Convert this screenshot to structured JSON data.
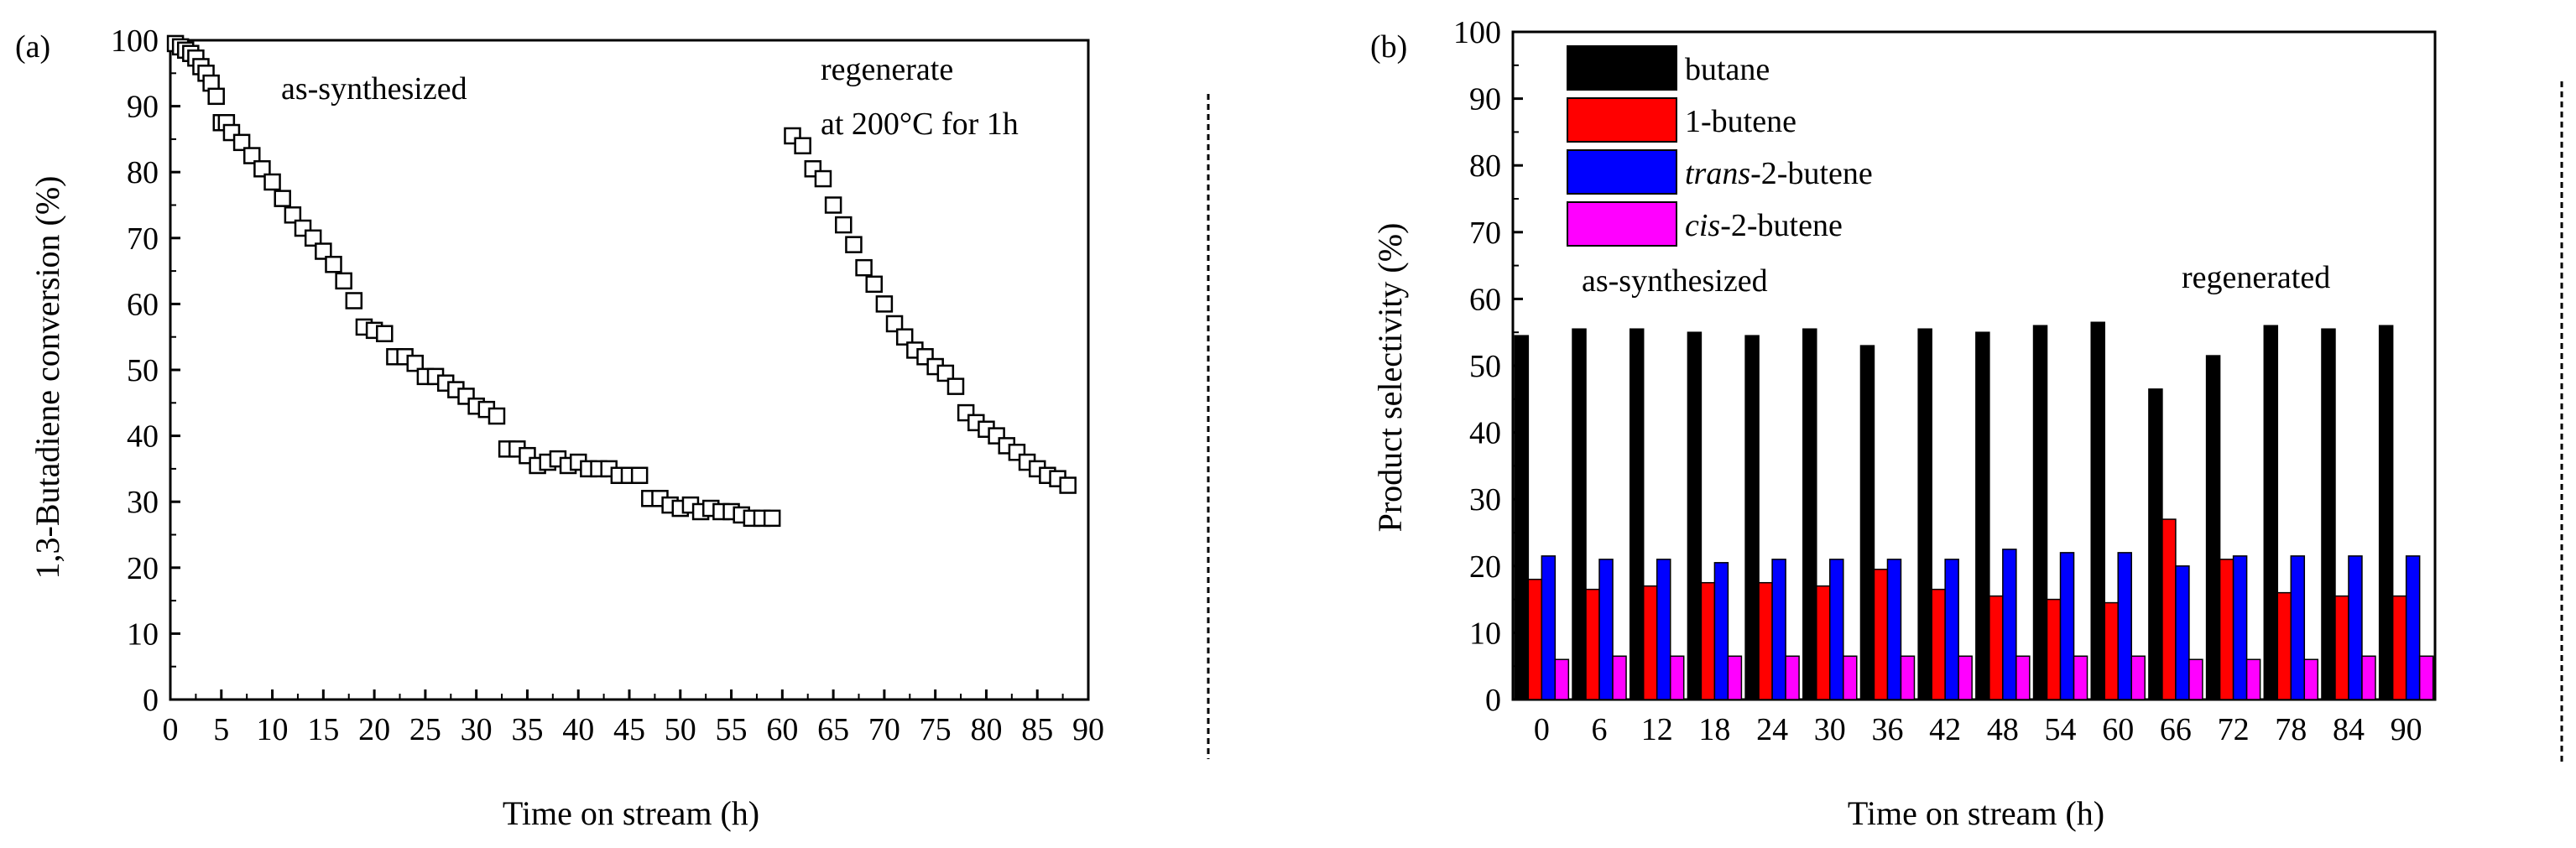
{
  "chart_data": [
    {
      "panel_label": "(a)",
      "type": "scatter",
      "xlabel": "Time on stream (h)",
      "ylabel": "1,3-Butadiene conversion (%)",
      "xlim": [
        0,
        90
      ],
      "ylim": [
        0,
        100
      ],
      "xticks": [
        0,
        5,
        10,
        15,
        20,
        25,
        30,
        35,
        40,
        45,
        50,
        55,
        60,
        65,
        70,
        75,
        80,
        85,
        90
      ],
      "yticks": [
        0,
        10,
        20,
        30,
        40,
        50,
        60,
        70,
        80,
        90,
        100
      ],
      "marker": "open-square",
      "annotations": [
        "as-synthesized",
        "regenerate",
        "at 200°C for 1h"
      ],
      "series": [
        {
          "x": [
            0.5,
            1,
            1.5,
            2,
            2.5,
            3,
            3.5,
            4,
            4.5,
            5,
            5.5,
            6,
            7,
            8,
            9,
            10,
            11,
            12,
            13,
            14,
            15,
            16,
            17,
            18,
            19,
            20,
            21,
            22,
            23,
            24,
            25,
            26,
            27,
            28,
            29,
            30,
            31,
            32,
            33,
            34,
            35,
            36,
            37,
            38,
            39,
            40,
            41,
            42,
            43,
            44,
            45,
            46,
            47,
            48,
            49,
            50,
            51,
            52,
            53,
            54,
            55,
            56,
            57,
            58,
            59
          ],
          "y": [
            99.5,
            99,
            98.5,
            98,
            97.3,
            96,
            95,
            93.5,
            91.5,
            87.5,
            87.5,
            86,
            84.5,
            82.5,
            80.5,
            78.5,
            76,
            73.5,
            71.5,
            70,
            68,
            66,
            63.5,
            60.5,
            56.5,
            56,
            55.5,
            52,
            52,
            51,
            49,
            49,
            48,
            47,
            46,
            44.5,
            44,
            43,
            38,
            38,
            37,
            35.5,
            36,
            36.5,
            35.5,
            36,
            35,
            35,
            35,
            34,
            34,
            34,
            30.5,
            30.5,
            29.5,
            29,
            29.5,
            28.5,
            29,
            28.5,
            28.5,
            28,
            27.5,
            27.5,
            27.5
          ]
        },
        {
          "x": [
            61,
            62,
            63,
            64,
            65,
            66,
            67,
            68,
            69,
            70,
            71,
            72,
            73,
            74,
            75,
            76,
            77,
            78,
            79,
            80,
            81,
            82,
            83,
            84,
            85,
            86,
            87,
            88
          ],
          "y": [
            85.5,
            84,
            80.5,
            79,
            75,
            72,
            69,
            65.5,
            63,
            60,
            57,
            55,
            53,
            52,
            50.5,
            49.5,
            47.5,
            43.5,
            42,
            41,
            40,
            38.5,
            37.5,
            36,
            35,
            34,
            33.5,
            32.5
          ]
        }
      ]
    },
    {
      "panel_label": "(b)",
      "type": "bar",
      "xlabel": "Time on stream (h)",
      "ylabel": "Product selectivity (%)",
      "ylim": [
        0,
        100
      ],
      "yticks": [
        0,
        10,
        20,
        30,
        40,
        50,
        60,
        70,
        80,
        90,
        100
      ],
      "categories": [
        "0",
        "6",
        "12",
        "18",
        "24",
        "30",
        "36",
        "42",
        "48",
        "54",
        "60",
        "66",
        "72",
        "78",
        "84",
        "90"
      ],
      "annotations": [
        "as-synthesized",
        "regenerated"
      ],
      "legend_position": "top-left",
      "series": [
        {
          "name": "butane",
          "name_prefix_italic": "",
          "name_suffix": "butane",
          "color": "#000000",
          "values": [
            54.5,
            55.5,
            55.5,
            55,
            54.5,
            55.5,
            53,
            55.5,
            55,
            56,
            56.5,
            46.5,
            51.5,
            56,
            55.5,
            56
          ]
        },
        {
          "name": "1-butene",
          "name_prefix_italic": "",
          "name_suffix": "1-butene",
          "color": "#ff0000",
          "values": [
            18,
            16.5,
            17,
            17.5,
            17.5,
            17,
            19.5,
            16.5,
            15.5,
            15,
            14.5,
            27,
            21,
            16,
            15.5,
            15.5
          ]
        },
        {
          "name": "trans-2-butene",
          "name_prefix_italic": "trans",
          "name_suffix": "-2-butene",
          "color": "#0000ff",
          "values": [
            21.5,
            21,
            21,
            20.5,
            21,
            21,
            21,
            21,
            22.5,
            22,
            22,
            20,
            21.5,
            21.5,
            21.5,
            21.5
          ]
        },
        {
          "name": "cis-2-butene",
          "name_prefix_italic": "cis",
          "name_suffix": "-2-butene",
          "color": "#ff00ff",
          "values": [
            6,
            6.5,
            6.5,
            6.5,
            6.5,
            6.5,
            6.5,
            6.5,
            6.5,
            6.5,
            6.5,
            6,
            6,
            6,
            6.5,
            6.5
          ]
        }
      ]
    }
  ]
}
